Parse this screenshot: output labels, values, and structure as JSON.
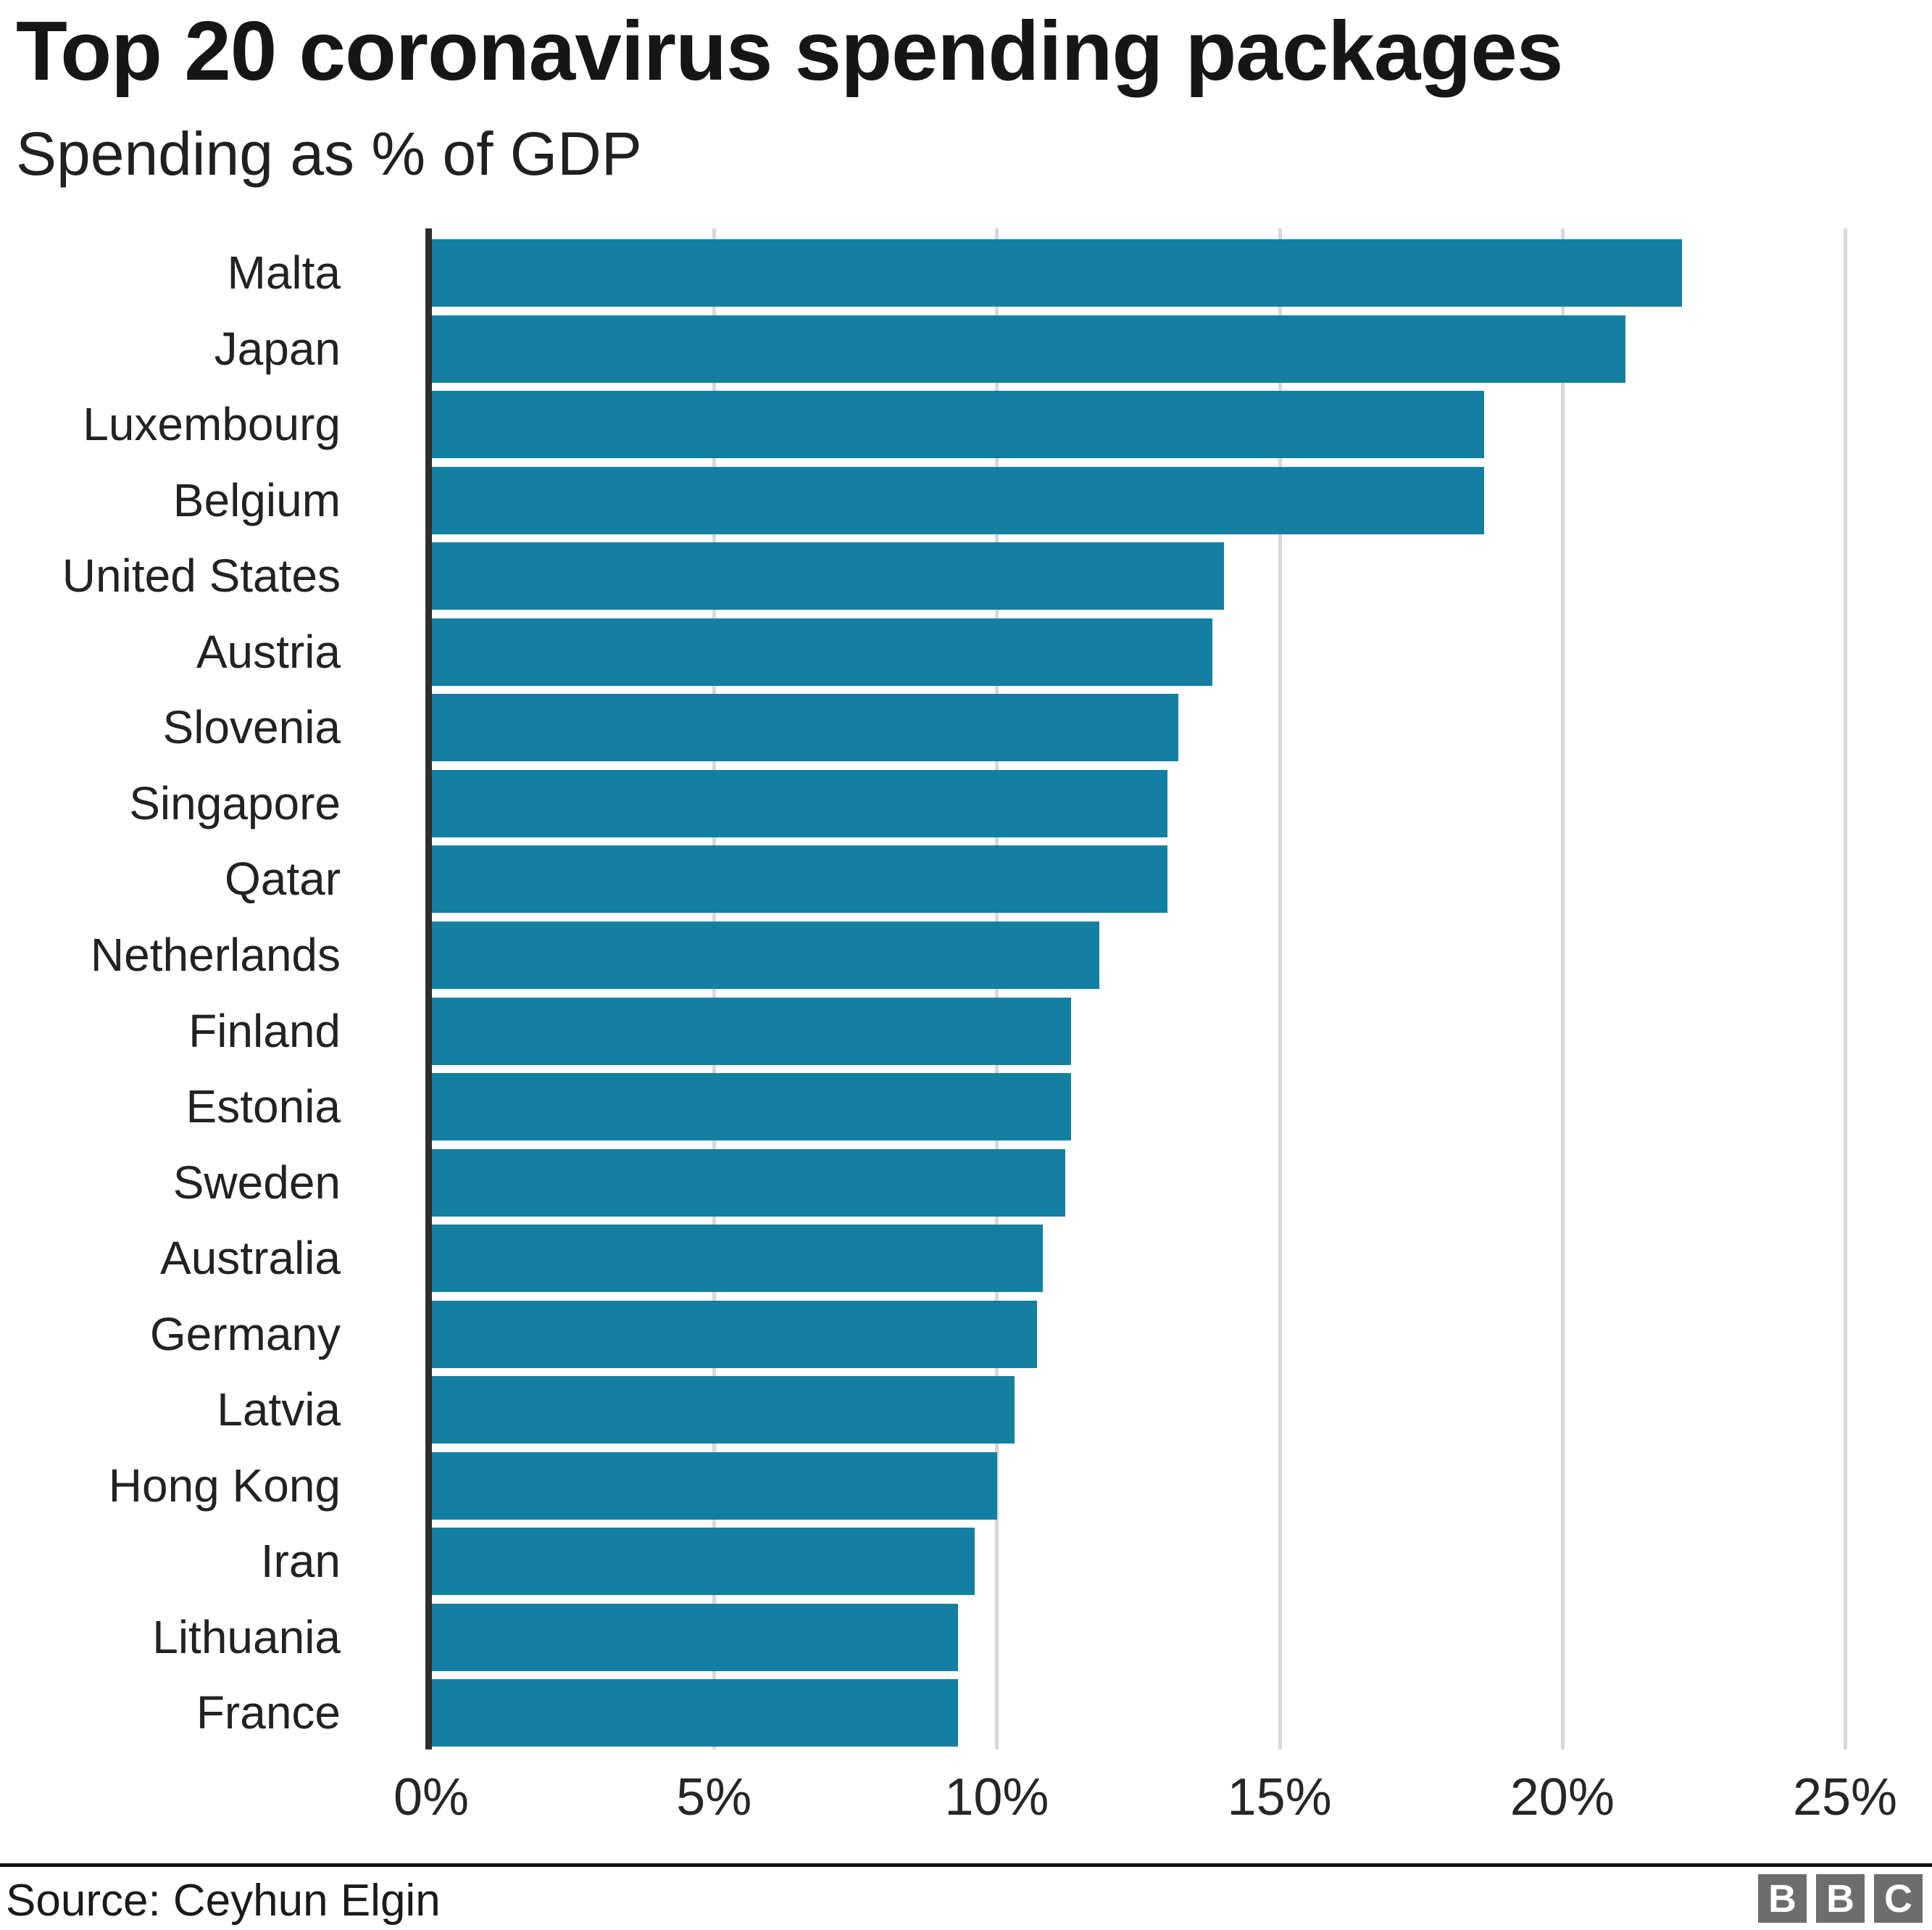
{
  "header": {
    "title": "Top 20 coronavirus spending packages",
    "subtitle": "Spending as % of GDP"
  },
  "footer": {
    "source": "Source: Ceyhun Elgin",
    "logo_letters": [
      "B",
      "B",
      "C"
    ]
  },
  "colors": {
    "bar": "#1380a1",
    "axis_spine": "#2e2e2e",
    "gridline": "#d8d8d8",
    "title_text": "#161616",
    "label_text": "#222222",
    "logo_grey": "#6d6d6d"
  },
  "chart_data": {
    "type": "bar",
    "orientation": "horizontal",
    "title": "Top 20 coronavirus spending packages",
    "subtitle": "Spending as % of GDP",
    "xlabel": "Spending as % of GDP",
    "ylabel": "",
    "xlim": [
      0,
      25
    ],
    "grid": "vertical-gridlines-on",
    "legend": "none",
    "categories": [
      "Malta",
      "Japan",
      "Luxembourg",
      "Belgium",
      "United States",
      "Austria",
      "Slovenia",
      "Singapore",
      "Qatar",
      "Netherlands",
      "Finland",
      "Estonia",
      "Sweden",
      "Australia",
      "Germany",
      "Latvia",
      "Hong Kong",
      "Iran",
      "Lithuania",
      "France"
    ],
    "values": [
      22.1,
      21.1,
      18.6,
      18.6,
      14.0,
      13.8,
      13.2,
      13.0,
      13.0,
      11.8,
      11.3,
      11.3,
      11.2,
      10.8,
      10.7,
      10.3,
      10.0,
      9.6,
      9.3,
      9.3
    ],
    "tick_values": [
      0,
      5,
      10,
      15,
      20,
      25
    ],
    "tick_labels": [
      "0%",
      "5%",
      "10%",
      "15%",
      "20%",
      "25%"
    ]
  }
}
